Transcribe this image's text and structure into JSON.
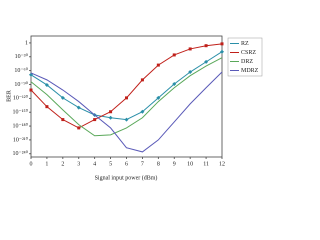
{
  "chart_data": {
    "type": "line",
    "log_y": true,
    "ylabel": "BER",
    "xlabel": "Signal input power (dBm)",
    "x": [
      0,
      1,
      2,
      3,
      4,
      5,
      6,
      7,
      8,
      9,
      10,
      11,
      12
    ],
    "xlim": [
      0,
      12
    ],
    "xticks": [
      0,
      1,
      2,
      3,
      4,
      5,
      6,
      7,
      8,
      9,
      10,
      11,
      12
    ],
    "ylim": [
      1e-247,
      1000000000000000.0
    ],
    "yticks": [
      1,
      {
        "value": 1e-30,
        "label": "10⁻³⁰"
      },
      {
        "value": 1e-60,
        "label": "10⁻⁶⁰"
      },
      {
        "value": 1e-90,
        "label": "10⁻⁹⁰"
      },
      {
        "value": 1e-120,
        "label": "10⁻¹²⁰"
      },
      {
        "value": 1e-150,
        "label": "10⁻¹⁵⁰"
      },
      {
        "value": 1e-180,
        "label": "10⁻¹⁸⁰"
      },
      {
        "value": 1e-210,
        "label": "10⁻²¹⁰"
      },
      {
        "value": 1e-240,
        "label": "10⁻²⁴⁰"
      }
    ],
    "legend": "top-right",
    "series": [
      {
        "name": "RZ",
        "color": "#2a8fa8",
        "marker": "diamond",
        "values": [
          1e-69,
          1e-91,
          1e-119,
          1e-140,
          1e-156,
          1e-162,
          1e-166,
          1e-149,
          1e-119,
          1e-89,
          1e-63,
          1e-41,
          1e-19
        ]
      },
      {
        "name": "CSRZ",
        "color": "#c0201a",
        "marker": "square",
        "values": [
          1e-102,
          1e-138,
          1e-166,
          1e-184,
          1e-166,
          1e-149,
          1e-119,
          1e-80,
          1e-48,
          1e-26,
          1e-13,
          1e-06,
          0.01
        ]
      },
      {
        "name": "DRZ",
        "color": "#5aa85a",
        "values": [
          1e-84,
          1e-112,
          1e-145,
          1e-177,
          1e-201,
          1e-199,
          1e-184,
          1e-162,
          1e-127,
          1e-97,
          1e-71,
          1e-50,
          1e-32
        ]
      },
      {
        "name": "MDRZ",
        "color": "#5a5ab8",
        "values": [
          1e-65,
          1e-80,
          1e-102,
          1e-127,
          1e-156,
          1e-184,
          1e-227,
          1e-236,
          1e-210,
          1e-171,
          1e-132,
          1e-97,
          1e-63
        ]
      }
    ]
  }
}
